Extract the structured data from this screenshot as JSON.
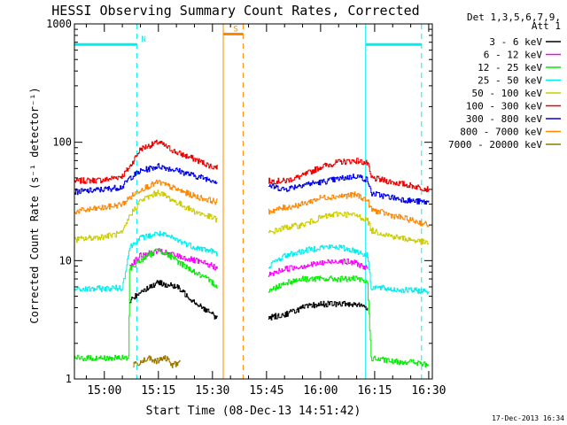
{
  "chart_data": {
    "type": "line",
    "title": "HESSI Observing Summary Count Rates, Corrected",
    "xlabel": "Start Time (08-Dec-13 14:51:42)",
    "ylabel": "Corrected Count Rate (s⁻¹ detector⁻¹)",
    "timestamp": "17-Dec-2013 16:34",
    "xlim": [
      "14:51:42",
      "16:31:00"
    ],
    "ylim": [
      1,
      1000
    ],
    "yscale": "log",
    "x_ticks": [
      "15:00",
      "15:15",
      "15:30",
      "15:45",
      "16:00",
      "16:15",
      "16:30"
    ],
    "y_ticks": [
      "1",
      "10",
      "100",
      "1000"
    ],
    "legend": {
      "placement": "right",
      "header": [
        "Det 1,3,5,6,7,9,",
        "Att 1"
      ],
      "entries": [
        {
          "label": "3 - 6 keV",
          "color": "#000000"
        },
        {
          "label": "6 - 12 keV",
          "color": "#ff00ff"
        },
        {
          "label": "12 - 25 keV",
          "color": "#00ee00"
        },
        {
          "label": "25 - 50 keV",
          "color": "#00eeee"
        },
        {
          "label": "50 - 100 keV",
          "color": "#cccc00"
        },
        {
          "label": "100 - 300 keV",
          "color": "#ee0000"
        },
        {
          "label": "300 - 800 keV",
          "color": "#0000ee"
        },
        {
          "label": "800 - 7000 keV",
          "color": "#ff8800"
        },
        {
          "label": "7000 - 20000 keV",
          "color": "#997700"
        }
      ]
    },
    "gaps": [
      [
        "15:31:30",
        "15:45:30"
      ]
    ],
    "series": [
      {
        "name": "100 - 300 keV",
        "color": "#ee0000",
        "x": [
          "14:51:42",
          "15:00",
          "15:05",
          "15:07",
          "15:10",
          "15:15",
          "15:20",
          "15:25",
          "15:30",
          "15:31:30",
          "15:45:30",
          "15:50",
          "15:55",
          "16:00",
          "16:05",
          "16:10",
          "16:13",
          "16:14",
          "16:20",
          "16:25",
          "16:30"
        ],
        "y": [
          47,
          48,
          52,
          62,
          88,
          100,
          82,
          72,
          62,
          62,
          47,
          47,
          52,
          62,
          68,
          70,
          66,
          50,
          46,
          43,
          40
        ]
      },
      {
        "name": "300 - 800 keV",
        "color": "#0000ee",
        "x": [
          "14:51:42",
          "15:00",
          "15:05",
          "15:07",
          "15:10",
          "15:15",
          "15:20",
          "15:25",
          "15:30",
          "15:31:30",
          "15:45:30",
          "15:50",
          "15:55",
          "16:00",
          "16:05",
          "16:10",
          "16:13",
          "16:14",
          "16:20",
          "16:25",
          "16:30"
        ],
        "y": [
          38,
          40,
          42,
          50,
          57,
          63,
          58,
          52,
          48,
          46,
          43,
          40,
          44,
          46,
          49,
          52,
          48,
          37,
          34,
          32,
          31
        ]
      },
      {
        "name": "800 - 7000 keV",
        "color": "#ff8800",
        "x": [
          "14:51:42",
          "15:00",
          "15:05",
          "15:07",
          "15:10",
          "15:15",
          "15:20",
          "15:25",
          "15:30",
          "15:31:30",
          "15:45:30",
          "15:50",
          "15:55",
          "16:00",
          "16:05",
          "16:10",
          "16:13",
          "16:14",
          "16:20",
          "16:25",
          "16:30"
        ],
        "y": [
          26,
          28,
          30,
          34,
          40,
          46,
          40,
          35,
          32,
          31,
          26,
          28,
          30,
          34,
          35,
          36,
          32,
          27,
          24,
          22,
          20
        ]
      },
      {
        "name": "50 - 100 keV",
        "color": "#cccc00",
        "x": [
          "14:51:42",
          "15:00",
          "15:05",
          "15:07",
          "15:10",
          "15:15",
          "15:20",
          "15:25",
          "15:30",
          "15:31:30",
          "15:45:30",
          "15:50",
          "15:55",
          "16:00",
          "16:05",
          "16:10",
          "16:13",
          "16:14",
          "16:20",
          "16:25",
          "16:30"
        ],
        "y": [
          15,
          16,
          17,
          24,
          32,
          38,
          31,
          26,
          23,
          22,
          17,
          19,
          20,
          23,
          25,
          24,
          22,
          18,
          16,
          15,
          14
        ]
      },
      {
        "name": "25 - 50 keV",
        "color": "#00eeee",
        "x": [
          "14:51:42",
          "15:00",
          "15:05",
          "15:07",
          "15:10",
          "15:15",
          "15:20",
          "15:25",
          "15:30",
          "15:31:30",
          "15:45:30",
          "15:50",
          "15:55",
          "16:00",
          "16:05",
          "16:10",
          "16:13",
          "16:14",
          "16:20",
          "16:25",
          "16:30"
        ],
        "y": [
          5.7,
          5.8,
          5.9,
          13,
          15.5,
          17,
          15,
          13,
          12,
          11,
          9,
          11,
          12,
          13,
          13,
          12,
          11,
          6,
          5.7,
          5.6,
          5.5
        ]
      },
      {
        "name": "6 - 12 keV",
        "color": "#ff00ff",
        "x": [
          "15:07",
          "15:10",
          "15:15",
          "15:20",
          "15:25",
          "15:30",
          "15:31:30",
          "15:45:30",
          "15:50",
          "15:55",
          "16:00",
          "16:05",
          "16:10",
          "16:13"
        ],
        "y": [
          9,
          11,
          12,
          11,
          10,
          9,
          8.5,
          7.5,
          8.5,
          9,
          9.5,
          10,
          9.5,
          8.5
        ]
      },
      {
        "name": "12 - 25 keV",
        "color": "#00ee00",
        "x": [
          "14:51:42",
          "15:06:45",
          "15:07",
          "15:10",
          "15:15",
          "15:20",
          "15:25",
          "15:30",
          "15:31:30",
          "15:45:30",
          "15:50",
          "15:55",
          "16:00",
          "16:05",
          "16:10",
          "16:13",
          "16:14",
          "16:20",
          "16:25",
          "16:30"
        ],
        "y": [
          1.5,
          1.5,
          8.5,
          10,
          12.5,
          10,
          8,
          6.5,
          6,
          5.5,
          6.5,
          7,
          7,
          7,
          7,
          6.5,
          1.5,
          1.4,
          1.4,
          1.3
        ]
      },
      {
        "name": "3 - 6 keV",
        "color": "#000000",
        "x": [
          "15:07",
          "15:10",
          "15:15",
          "15:20",
          "15:25",
          "15:30",
          "15:31:30",
          "15:45:30",
          "15:50",
          "15:55",
          "16:00",
          "16:05",
          "16:10",
          "16:13"
        ],
        "y": [
          4.5,
          5.5,
          6.5,
          6,
          4.5,
          3.5,
          3.2,
          3.3,
          3.5,
          4,
          4.3,
          4.3,
          4.3,
          4
        ]
      },
      {
        "name": "7000 - 20000 keV",
        "color": "#997700",
        "x": [
          "15:08",
          "15:12",
          "15:14",
          "15:17",
          "15:19",
          "15:21"
        ],
        "y": [
          1.3,
          1.5,
          1.4,
          1.5,
          1.3,
          1.4
        ]
      }
    ],
    "markers": [
      {
        "label": "N",
        "x": [
          "14:51:42",
          "15:09"
        ],
        "y": 670,
        "color": "#00eeee"
      },
      {
        "label": "S",
        "x": [
          "15:33",
          "15:38:30"
        ],
        "y": 820,
        "color": "#ff8800"
      },
      {
        "label": "",
        "x": [
          "16:12:30",
          "16:28"
        ],
        "y": 670,
        "color": "#00eeee"
      }
    ]
  }
}
